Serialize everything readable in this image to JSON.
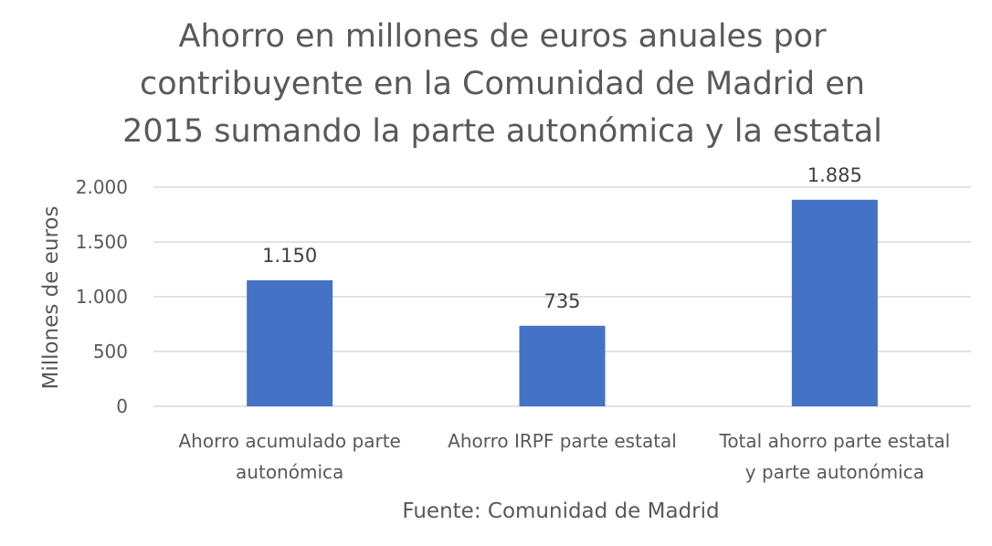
{
  "chart_data": {
    "type": "bar",
    "title_lines": [
      "Ahorro en millones de euros anuales por",
      "contribuyente en la Comunidad de Madrid en",
      "2015 sumando la parte autonómica y la estatal"
    ],
    "categories": [
      [
        "Ahorro acumulado parte",
        "autonómica"
      ],
      [
        "Ahorro IRPF parte estatal"
      ],
      [
        "Total ahorro parte estatal",
        "y parte autonómica"
      ]
    ],
    "values": [
      1150,
      735,
      1885
    ],
    "value_labels": [
      "1.150",
      "735",
      "1.885"
    ],
    "ylabel": "Millones de euros",
    "xlabel": "Fuente: Comunidad de Madrid",
    "ylim": [
      0,
      2000
    ],
    "yticks": [
      0,
      500,
      1000,
      1500,
      2000
    ],
    "ytick_labels": [
      "0",
      "500",
      "1.000",
      "1.500",
      "2.000"
    ],
    "bar_color": "#4472C4",
    "grid_color": "#D9D9D9",
    "grid": true
  }
}
